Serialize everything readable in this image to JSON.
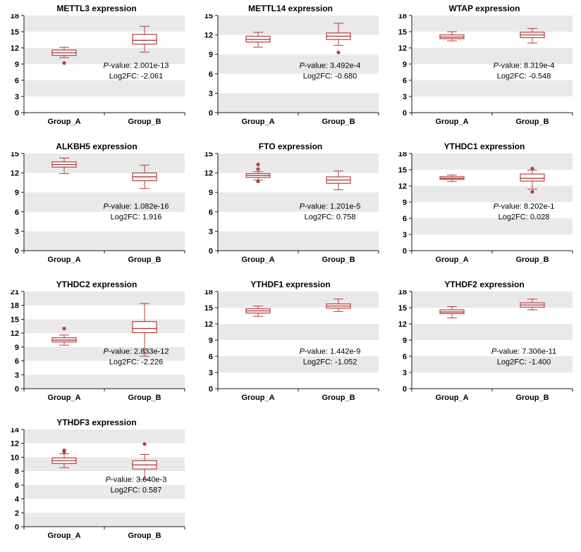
{
  "page": {
    "background": "#ffffff"
  },
  "colors": {
    "box_stroke": "#b0413e",
    "box_fill": "#ffffff",
    "outlier": "#b0413e",
    "band": "#e9e9e9",
    "axis": "#1a1a1a",
    "text": "#000000"
  },
  "chart_data": [
    {
      "type": "box",
      "title": "METTL3 expression",
      "categories": [
        "Group_A",
        "Group_B"
      ],
      "ylim": [
        0,
        18
      ],
      "yticks": [
        0,
        3,
        6,
        9,
        12,
        15,
        18
      ],
      "grid": "banded",
      "anno_y_frac": 0.54,
      "annotations": {
        "p_line": "P-value: 2.001e-13",
        "fc_line": "Log2FC: -2.061"
      },
      "series": [
        {
          "name": "Group_A",
          "whisker_low": 10.2,
          "q1": 10.6,
          "median": 11.1,
          "q3": 11.6,
          "whisker_high": 12.1,
          "outliers": [
            9.2
          ]
        },
        {
          "name": "Group_B",
          "whisker_low": 11.2,
          "q1": 12.7,
          "median": 13.4,
          "q3": 14.5,
          "whisker_high": 16.0,
          "outliers": []
        }
      ]
    },
    {
      "type": "box",
      "title": "METTL14 expression",
      "categories": [
        "Group_A",
        "Group_B"
      ],
      "ylim": [
        0,
        15
      ],
      "yticks": [
        0,
        3,
        6,
        9,
        12,
        15
      ],
      "grid": "banded",
      "anno_y_frac": 0.54,
      "annotations": {
        "p_line": "P-value: 3.492e-4",
        "fc_line": "Log2FC: -0.680"
      },
      "series": [
        {
          "name": "Group_A",
          "whisker_low": 10.1,
          "q1": 10.9,
          "median": 11.3,
          "q3": 11.8,
          "whisker_high": 12.4,
          "outliers": []
        },
        {
          "name": "Group_B",
          "whisker_low": 10.4,
          "q1": 11.3,
          "median": 11.8,
          "q3": 12.3,
          "whisker_high": 13.8,
          "outliers": [
            9.3
          ]
        }
      ]
    },
    {
      "type": "box",
      "title": "WTAP expression",
      "categories": [
        "Group_A",
        "Group_B"
      ],
      "ylim": [
        0,
        18
      ],
      "yticks": [
        0,
        3,
        6,
        9,
        12,
        15,
        18
      ],
      "grid": "banded",
      "anno_y_frac": 0.54,
      "annotations": {
        "p_line": "P-value: 8.319e-4",
        "fc_line": "Log2FC: -0.548"
      },
      "series": [
        {
          "name": "Group_A",
          "whisker_low": 13.3,
          "q1": 13.7,
          "median": 14.0,
          "q3": 14.4,
          "whisker_high": 15.0,
          "outliers": []
        },
        {
          "name": "Group_B",
          "whisker_low": 12.9,
          "q1": 13.9,
          "median": 14.4,
          "q3": 14.9,
          "whisker_high": 15.6,
          "outliers": []
        }
      ]
    },
    {
      "type": "box",
      "title": "ALKBH5 expression",
      "categories": [
        "Group_A",
        "Group_B"
      ],
      "ylim": [
        0,
        15
      ],
      "yticks": [
        0,
        3,
        6,
        9,
        12,
        15
      ],
      "grid": "banded",
      "anno_y_frac": 0.57,
      "annotations": {
        "p_line": "P-value: 1.082e-16",
        "fc_line": "Log2FC: 1.916"
      },
      "series": [
        {
          "name": "Group_A",
          "whisker_low": 11.9,
          "q1": 12.9,
          "median": 13.3,
          "q3": 13.7,
          "whisker_high": 14.3,
          "outliers": []
        },
        {
          "name": "Group_B",
          "whisker_low": 9.6,
          "q1": 10.8,
          "median": 11.4,
          "q3": 12.0,
          "whisker_high": 13.2,
          "outliers": []
        }
      ]
    },
    {
      "type": "box",
      "title": "FTO expression",
      "categories": [
        "Group_A",
        "Group_B"
      ],
      "ylim": [
        0,
        15
      ],
      "yticks": [
        0,
        3,
        6,
        9,
        12,
        15
      ],
      "grid": "banded",
      "anno_y_frac": 0.57,
      "annotations": {
        "p_line": "P-value: 1.201e-5",
        "fc_line": "Log2FC: 0.758"
      },
      "series": [
        {
          "name": "Group_A",
          "whisker_low": 10.9,
          "q1": 11.3,
          "median": 11.6,
          "q3": 11.9,
          "whisker_high": 12.2,
          "outliers": [
            13.3,
            12.6,
            10.7
          ]
        },
        {
          "name": "Group_B",
          "whisker_low": 9.4,
          "q1": 10.4,
          "median": 10.9,
          "q3": 11.4,
          "whisker_high": 12.3,
          "outliers": []
        }
      ]
    },
    {
      "type": "box",
      "title": "YTHDC1 expression",
      "categories": [
        "Group_A",
        "Group_B"
      ],
      "ylim": [
        0,
        18
      ],
      "yticks": [
        0,
        3,
        6,
        9,
        12,
        15,
        18
      ],
      "grid": "banded",
      "anno_y_frac": 0.57,
      "annotations": {
        "p_line": "P-value: 8.202e-1",
        "fc_line": "Log2FC: 0.028"
      },
      "series": [
        {
          "name": "Group_A",
          "whisker_low": 12.8,
          "q1": 13.2,
          "median": 13.4,
          "q3": 13.7,
          "whisker_high": 14.0,
          "outliers": []
        },
        {
          "name": "Group_B",
          "whisker_low": 11.4,
          "q1": 12.9,
          "median": 13.4,
          "q3": 14.2,
          "whisker_high": 14.9,
          "outliers": [
            15.2,
            10.9
          ]
        }
      ]
    },
    {
      "type": "box",
      "title": "YTHDC2 expression",
      "categories": [
        "Group_A",
        "Group_B"
      ],
      "ylim": [
        0,
        21
      ],
      "yticks": [
        0,
        3,
        6,
        9,
        12,
        15,
        18,
        21
      ],
      "grid": "banded",
      "anno_y_frac": 0.64,
      "annotations": {
        "p_line": "P-value: 2.833e-12",
        "fc_line": "Log2FC: -2.226"
      },
      "series": [
        {
          "name": "Group_A",
          "whisker_low": 9.4,
          "q1": 10.1,
          "median": 10.5,
          "q3": 11.0,
          "whisker_high": 11.6,
          "outliers": [
            13.0
          ]
        },
        {
          "name": "Group_B",
          "whisker_low": 7.0,
          "q1": 12.1,
          "median": 13.0,
          "q3": 14.5,
          "whisker_high": 18.4,
          "outliers": []
        }
      ]
    },
    {
      "type": "box",
      "title": "YTHDF1 expression",
      "categories": [
        "Group_A",
        "Group_B"
      ],
      "ylim": [
        0,
        18
      ],
      "yticks": [
        0,
        3,
        6,
        9,
        12,
        15,
        18
      ],
      "grid": "banded",
      "anno_y_frac": 0.64,
      "annotations": {
        "p_line": "P-value: 1.442e-9",
        "fc_line": "Log2FC: -1.052"
      },
      "series": [
        {
          "name": "Group_A",
          "whisker_low": 13.4,
          "q1": 14.0,
          "median": 14.4,
          "q3": 14.8,
          "whisker_high": 15.3,
          "outliers": []
        },
        {
          "name": "Group_B",
          "whisker_low": 14.3,
          "q1": 14.9,
          "median": 15.3,
          "q3": 15.7,
          "whisker_high": 16.6,
          "outliers": []
        }
      ]
    },
    {
      "type": "box",
      "title": "YTHDF2 expression",
      "categories": [
        "Group_A",
        "Group_B"
      ],
      "ylim": [
        0,
        18
      ],
      "yticks": [
        0,
        3,
        6,
        9,
        12,
        15,
        18
      ],
      "grid": "banded",
      "anno_y_frac": 0.64,
      "annotations": {
        "p_line": "P-value: 7.306e-11",
        "fc_line": "Log2FC: -1.400"
      },
      "series": [
        {
          "name": "Group_A",
          "whisker_low": 13.1,
          "q1": 13.9,
          "median": 14.2,
          "q3": 14.6,
          "whisker_high": 15.2,
          "outliers": []
        },
        {
          "name": "Group_B",
          "whisker_low": 14.6,
          "q1": 15.1,
          "median": 15.5,
          "q3": 15.9,
          "whisker_high": 16.6,
          "outliers": []
        }
      ]
    },
    {
      "type": "box",
      "title": "YTHDF3 expression",
      "categories": [
        "Group_A",
        "Group_B"
      ],
      "ylim": [
        0,
        14
      ],
      "yticks": [
        0,
        2,
        4,
        6,
        8,
        10,
        12,
        14
      ],
      "grid": "banded",
      "anno_y_frac": 0.54,
      "annotations": {
        "p_line": "P-value: 3.640e-3",
        "fc_line": "Log2FC: 0.587"
      },
      "series": [
        {
          "name": "Group_A",
          "whisker_low": 8.5,
          "q1": 9.1,
          "median": 9.5,
          "q3": 9.9,
          "whisker_high": 10.5,
          "outliers": [
            10.8,
            11.0
          ]
        },
        {
          "name": "Group_B",
          "whisker_low": 6.8,
          "q1": 8.3,
          "median": 8.9,
          "q3": 9.5,
          "whisker_high": 10.4,
          "outliers": [
            11.9
          ]
        }
      ]
    }
  ]
}
